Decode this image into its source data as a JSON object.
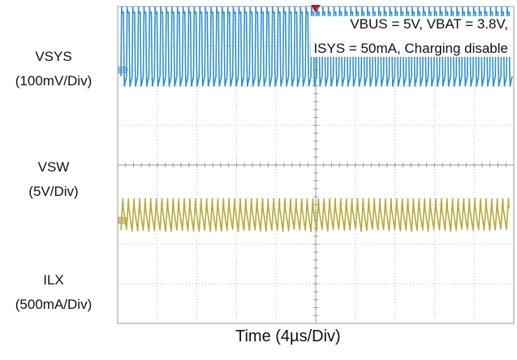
{
  "chart_data": {
    "type": "line",
    "title": "",
    "xlabel": "Time (4µs/Div)",
    "x_divisions": 10,
    "y_divisions": 8,
    "grid": true,
    "annotation": [
      "VBUS = 5V, VBAT = 3.8V,",
      "ISYS = 50mA, Charging disable"
    ],
    "channels": [
      {
        "label": "VSYS",
        "scale": "(100mV/Div)",
        "color": "#c0309a",
        "marker_color": "#d8a8d0",
        "ground_div": 5.0,
        "waveform": "flat",
        "amplitude_div": 0.03,
        "pulses": 0
      },
      {
        "label": "VSW",
        "scale": "(5V/Div)",
        "color": "#2f8fd0",
        "marker_color": "#9ec8e6",
        "ground_div": 2.4,
        "waveform": "switching",
        "amplitude_div": 0.75,
        "pulses": 70
      },
      {
        "label": "ILX",
        "scale": "(500mA/Div)",
        "color": "#b8a93a",
        "marker_color": "#d6cc88",
        "ground_div": -1.4,
        "waveform": "triangle",
        "amplitude_div": 0.5,
        "pulses": 70
      }
    ]
  }
}
